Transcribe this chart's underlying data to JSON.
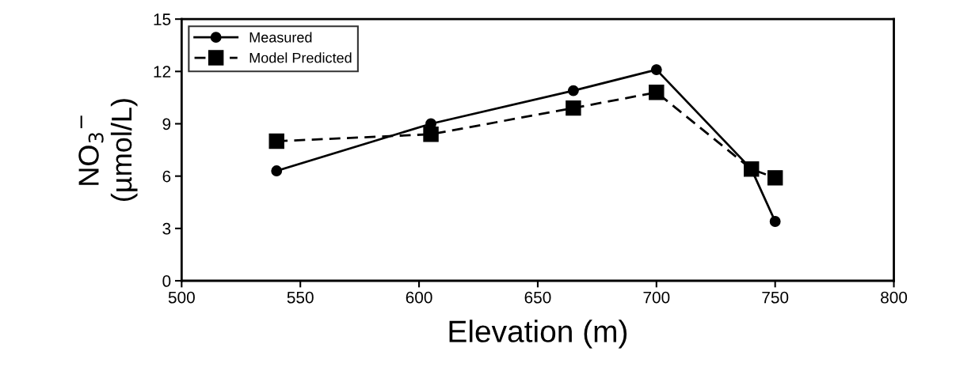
{
  "chart_data": {
    "type": "line",
    "xlabel": "Elevation (m)",
    "ylabel": "NO$_{3}$$^{−}$\n(µmol/L)",
    "xlim": [
      500,
      800
    ],
    "xticks": [
      500,
      550,
      600,
      650,
      700,
      750,
      800
    ],
    "ylim": [
      0,
      15
    ],
    "yticks": [
      0,
      3,
      6,
      9,
      12,
      15
    ],
    "grid": false,
    "legend": "top left",
    "series": [
      {
        "name": "Measured",
        "color": "#000000",
        "marker": "circle",
        "line_style": "solid",
        "x": [
          540,
          605,
          665,
          700,
          740,
          750
        ],
        "values": [
          6.3,
          9.0,
          10.9,
          12.1,
          6.4,
          3.4
        ]
      },
      {
        "name": "Model Predicted",
        "color": "#000000",
        "marker": "square",
        "line_style": "dashed",
        "x": [
          540,
          605,
          665,
          700,
          740,
          750
        ],
        "values": [
          8.0,
          8.4,
          9.9,
          10.8,
          6.4,
          5.9
        ]
      }
    ]
  }
}
